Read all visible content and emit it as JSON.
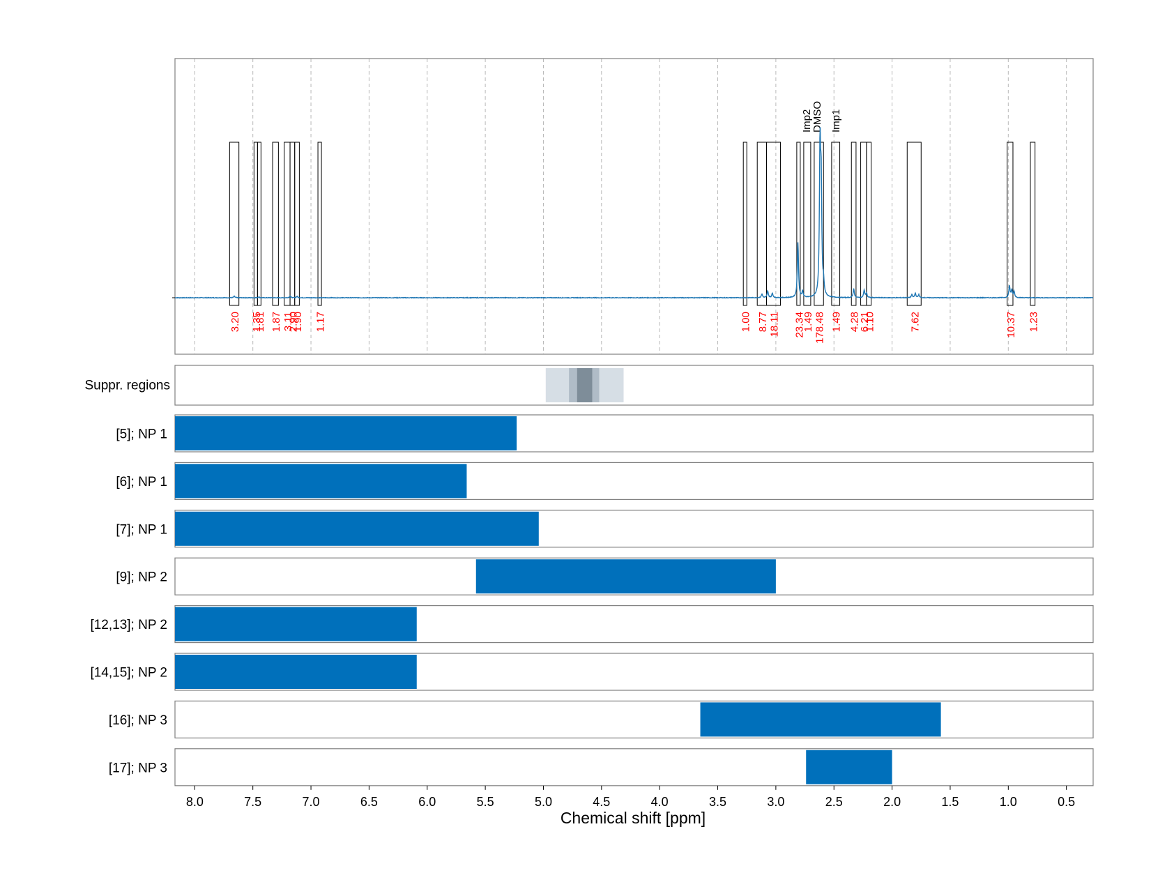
{
  "chart_data": {
    "type": "nmr-spectrum-with-range-bars",
    "xlabel": "Chemical shift [ppm]",
    "xlim": [
      8.17,
      0.27
    ],
    "x_ticks": [
      "8.0",
      "7.5",
      "7.0",
      "6.5",
      "6.0",
      "5.5",
      "5.0",
      "4.5",
      "4.0",
      "3.5",
      "3.0",
      "2.5",
      "2.0",
      "1.5",
      "1.0",
      "0.5"
    ],
    "grid": "dashed vertical lines at each tick",
    "colors": {
      "spectrum": "#1f77b4",
      "bars": "#0070bb",
      "integrals": "#ff0000",
      "frame": "#808080"
    },
    "spectrum_peaks": [
      {
        "x": 7.66,
        "y": 0.01
      },
      {
        "x": 7.45,
        "y": 0.006
      },
      {
        "x": 7.18,
        "y": 0.012
      },
      {
        "x": 7.12,
        "y": 0.01
      },
      {
        "x": 3.12,
        "y": 0.025
      },
      {
        "x": 3.07,
        "y": 0.045
      },
      {
        "x": 3.03,
        "y": 0.03
      },
      {
        "x": 2.81,
        "y": 0.37
      },
      {
        "x": 2.77,
        "y": 0.04
      },
      {
        "x": 2.62,
        "y": 0.96
      },
      {
        "x": 2.61,
        "y": 0.7
      },
      {
        "x": 2.59,
        "y": 0.08
      },
      {
        "x": 2.33,
        "y": 0.06
      },
      {
        "x": 2.24,
        "y": 0.05
      },
      {
        "x": 2.22,
        "y": 0.03
      },
      {
        "x": 1.83,
        "y": 0.02
      },
      {
        "x": 1.8,
        "y": 0.03
      },
      {
        "x": 1.77,
        "y": 0.02
      },
      {
        "x": 0.99,
        "y": 0.08
      },
      {
        "x": 0.97,
        "y": 0.05
      },
      {
        "x": 0.95,
        "y": 0.04
      }
    ],
    "integrals": [
      {
        "from": 7.7,
        "to": 7.62,
        "value": "3.20"
      },
      {
        "from": 7.49,
        "to": 7.46,
        "value": "1.35"
      },
      {
        "from": 7.46,
        "to": 7.43,
        "value": "1.81"
      },
      {
        "from": 7.33,
        "to": 7.28,
        "value": "1.87"
      },
      {
        "from": 7.23,
        "to": 7.18,
        "value": "3.11"
      },
      {
        "from": 7.18,
        "to": 7.14,
        "value": "2.90"
      },
      {
        "from": 7.14,
        "to": 7.1,
        "value": "1.90"
      },
      {
        "from": 6.94,
        "to": 6.91,
        "value": "1.17"
      },
      {
        "from": 3.28,
        "to": 3.25,
        "value": "1.00"
      },
      {
        "from": 3.16,
        "to": 3.08,
        "value": "8.77"
      },
      {
        "from": 3.08,
        "to": 2.96,
        "value": "18.11"
      },
      {
        "from": 2.82,
        "to": 2.79,
        "value": "23.34"
      },
      {
        "from": 2.76,
        "to": 2.7,
        "value": "1.49"
      },
      {
        "from": 2.67,
        "to": 2.59,
        "value": "178.48"
      },
      {
        "from": 2.52,
        "to": 2.45,
        "value": "1.49"
      },
      {
        "from": 2.35,
        "to": 2.31,
        "value": "4.28"
      },
      {
        "from": 2.27,
        "to": 2.22,
        "value": "6.21"
      },
      {
        "from": 2.22,
        "to": 2.18,
        "value": "1.10"
      },
      {
        "from": 1.87,
        "to": 1.75,
        "value": "7.62"
      },
      {
        "from": 1.01,
        "to": 0.96,
        "value": "10.37"
      },
      {
        "from": 0.81,
        "to": 0.77,
        "value": "1.23"
      }
    ],
    "annotations": [
      {
        "x": 2.74,
        "text": "Imp2"
      },
      {
        "x": 2.65,
        "text": "DMSO"
      },
      {
        "x": 2.49,
        "text": "Imp1"
      }
    ],
    "suppressed_regions": {
      "label": "Suppr. regions",
      "bands": [
        {
          "from": 4.98,
          "to": 4.31,
          "shade": "light"
        },
        {
          "from": 4.78,
          "to": 4.52,
          "shade": "medium"
        },
        {
          "from": 4.71,
          "to": 4.58,
          "shade": "dark"
        }
      ]
    },
    "ranges": [
      {
        "label": "[5]; NP 1",
        "from": 8.17,
        "to": 5.23
      },
      {
        "label": "[6]; NP 1",
        "from": 8.17,
        "to": 5.66
      },
      {
        "label": "[7]; NP 1",
        "from": 8.17,
        "to": 5.04
      },
      {
        "label": "[9]; NP 2",
        "from": 5.58,
        "to": 3.0
      },
      {
        "label": "[12,13]; NP 2",
        "from": 8.17,
        "to": 6.09
      },
      {
        "label": "[14,15]; NP 2",
        "from": 8.17,
        "to": 6.09
      },
      {
        "label": "[16]; NP 3",
        "from": 3.65,
        "to": 1.58
      },
      {
        "label": "[17]; NP 3",
        "from": 2.74,
        "to": 2.0
      }
    ]
  }
}
